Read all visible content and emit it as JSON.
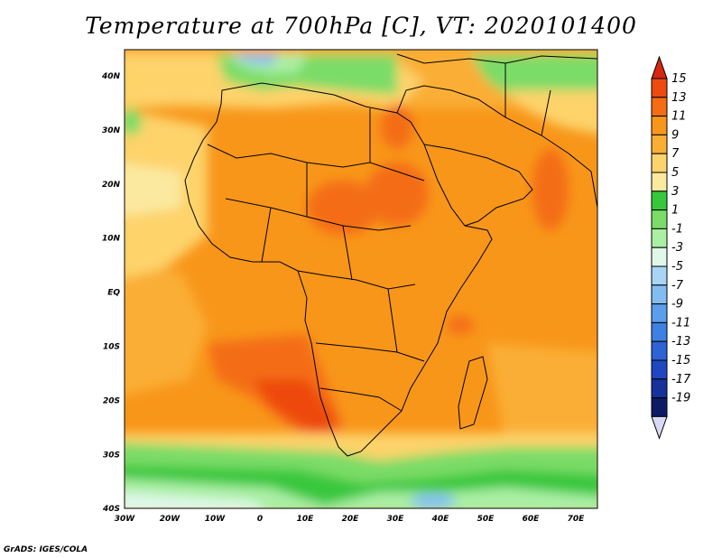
{
  "title": "Temperature at 700hPa [C], VT: 2020101400",
  "credit": "GrADS: IGES/COLA",
  "map": {
    "lon_labels": [
      "30W",
      "20W",
      "10W",
      "0",
      "10E",
      "20E",
      "30E",
      "40E",
      "50E",
      "60E",
      "70E"
    ],
    "lat_labels": [
      "40N",
      "30N",
      "20N",
      "10N",
      "EQ",
      "10S",
      "20S",
      "30S",
      "40S"
    ]
  },
  "colorbar": {
    "labels": [
      "15",
      "13",
      "11",
      "9",
      "7",
      "5",
      "3",
      "1",
      "-1",
      "-3",
      "-5",
      "-7",
      "-9",
      "-11",
      "-13",
      "-15",
      "-17",
      "-19"
    ],
    "colors": [
      "#d7260f",
      "#ee4a10",
      "#f46d12",
      "#f8961a",
      "#faae34",
      "#fdd36b",
      "#fbe9a0",
      "#37c73d",
      "#7bdc68",
      "#aaefa4",
      "#dff8ea",
      "#aad4f6",
      "#82bdf2",
      "#5a9eec",
      "#3f80e3",
      "#2e63d6",
      "#1f47c2",
      "#17309a",
      "#0c1b63",
      "#d8daf5"
    ]
  }
}
